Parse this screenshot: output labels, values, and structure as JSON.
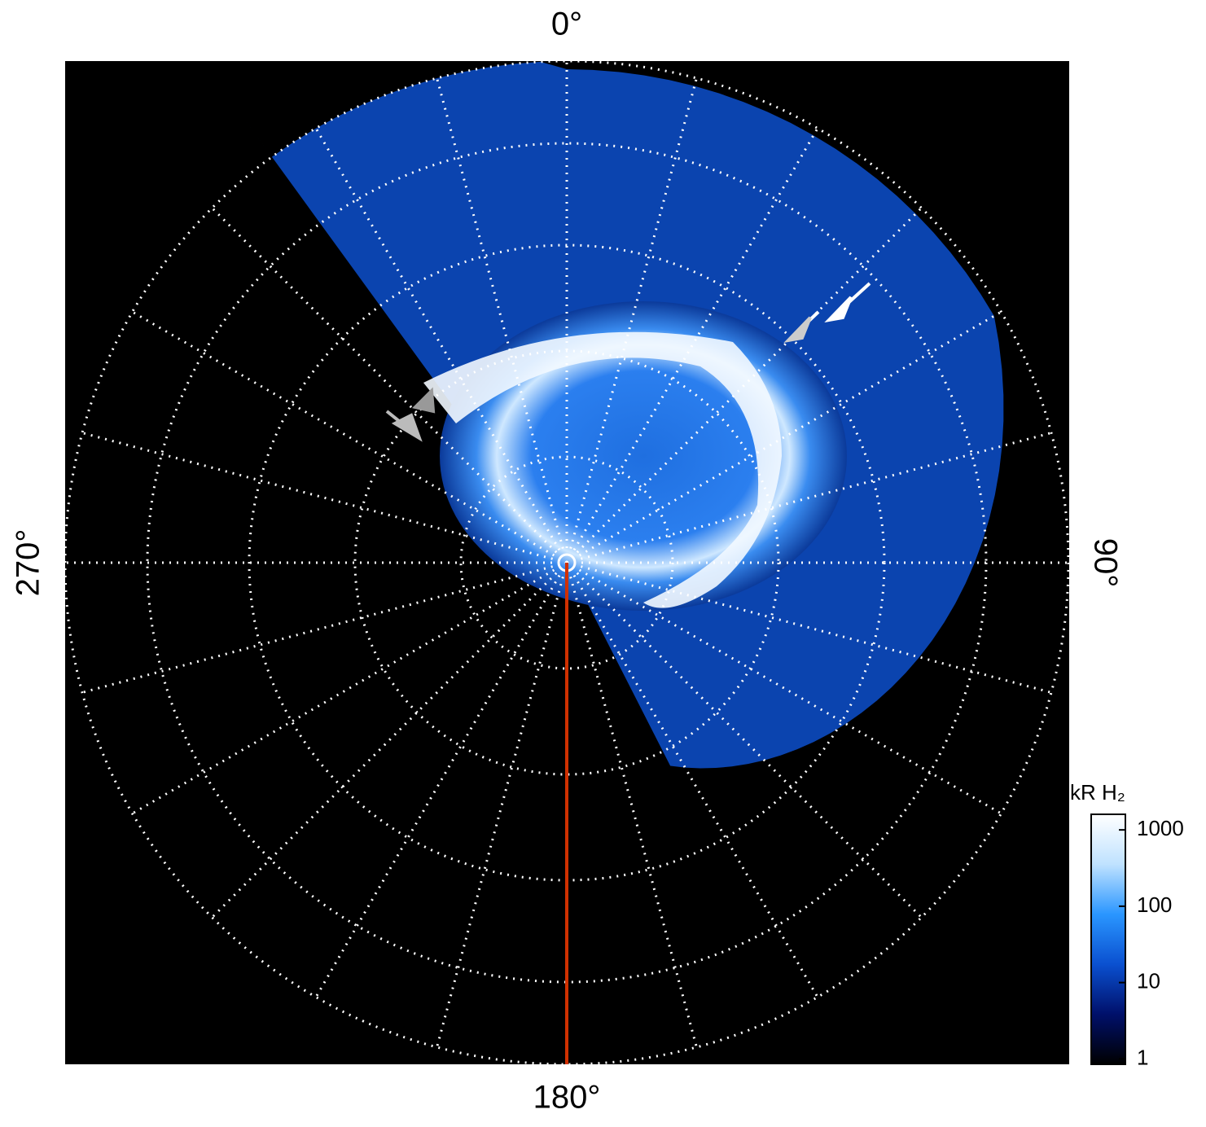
{
  "chart_data": {
    "type": "polar-image",
    "thetaticks": [
      {
        "value": 0,
        "label": "0°"
      },
      {
        "value": 90,
        "label": "90°"
      },
      {
        "value": 180,
        "label": "180°"
      },
      {
        "value": 270,
        "label": "270°"
      }
    ],
    "colorbar": {
      "label": "kR H₂",
      "log": true,
      "lim": [
        0.85,
        1600
      ],
      "ticks": [
        1,
        10,
        100,
        1000
      ],
      "colors": [
        "#000000",
        "#00106a",
        "#0a50d0",
        "#2a96ff",
        "#bfe2ff",
        "#ffffff"
      ]
    }
  }
}
